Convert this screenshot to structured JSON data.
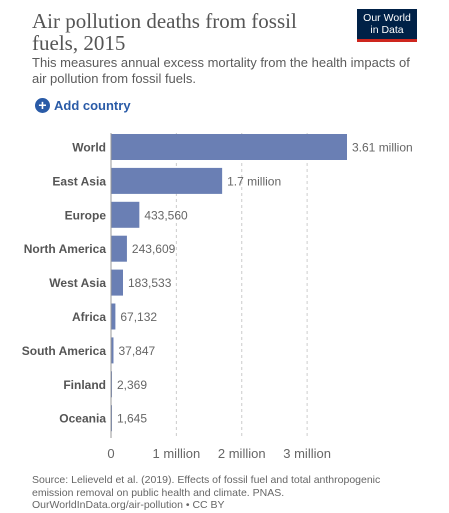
{
  "header": {
    "title": "Air pollution deaths from fossil fuels, 2015",
    "subtitle": "This measures annual excess mortality from the health impacts of air pollution from fossil fuels.",
    "logo_line1": "Our World",
    "logo_line2": "in Data"
  },
  "controls": {
    "add_country_label": "Add country",
    "add_icon": "plus-circle-icon"
  },
  "colors": {
    "bar": "#6a7fb4",
    "accent": "#2a5ba7",
    "logo_bg": "#002147",
    "logo_bar": "#ce261e"
  },
  "chart_data": {
    "type": "bar",
    "orientation": "horizontal",
    "categories": [
      "World",
      "East Asia",
      "Europe",
      "North America",
      "West Asia",
      "Africa",
      "South America",
      "Finland",
      "Oceania"
    ],
    "values": [
      3610000,
      1700000,
      433560,
      243609,
      183533,
      67132,
      37847,
      2369,
      1645
    ],
    "value_labels": [
      "3.61 million",
      "1.7 million",
      "433,560",
      "243,609",
      "183,533",
      "67,132",
      "37,847",
      "2,369",
      "1,645"
    ],
    "xlim": [
      0,
      3610000
    ],
    "xticks": [
      0,
      1000000,
      2000000,
      3000000
    ],
    "xtick_labels": [
      "0",
      "1 million",
      "2 million",
      "3 million"
    ],
    "grid": true
  },
  "footer": {
    "source_line1": "Source: Lelieveld et al. (2019). Effects of fossil fuel and total anthropogenic",
    "source_line2": "emission removal on public health and climate. PNAS.",
    "source_line3": "OurWorldInData.org/air-pollution • CC BY"
  }
}
